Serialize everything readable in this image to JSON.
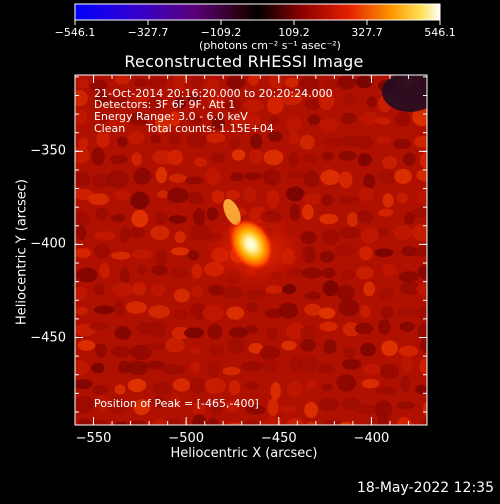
{
  "colorbar": {
    "ticks": [
      "−546.1",
      "−327.7",
      "−109.2",
      "109.2",
      "327.7",
      "546.1"
    ],
    "unit": "(photons cm⁻² s⁻¹ asec⁻²)",
    "range": [
      -546.1,
      546.1
    ]
  },
  "annotations": {
    "time": "21-Oct-2014 20:16:20.000 to 20:20:24.000",
    "detectors": "Detectors: 3F 6F 9F, Att 1",
    "energy": "Energy Range: 3.0 - 6.0 keV",
    "algorithm": "Clean",
    "counts": "Total counts: 1.15E+04",
    "peak": "Position of Peak = [-465,-400]"
  },
  "footer": {
    "datetime": "18-May-2022 12:35"
  },
  "chart_data": {
    "type": "heatmap",
    "title": "Reconstructed RHESSI Image",
    "xlabel": "Heliocentric X (arcsec)",
    "ylabel": "Heliocentric Y (arcsec)",
    "xlim": [
      -560,
      -370
    ],
    "ylim": [
      -497,
      -309
    ],
    "x_ticks": [
      "−550",
      "−500",
      "−450",
      "−400"
    ],
    "y_ticks": [
      "−350",
      "−400",
      "−450"
    ],
    "x_tick_values": [
      -550,
      -500,
      -450,
      -400
    ],
    "y_tick_values": [
      -350,
      -400,
      -450
    ],
    "colormap": "red-temperature (black-red-orange-yellow-white)",
    "peak_position": [
      -465,
      -400
    ],
    "peak_value": 546.1
  }
}
